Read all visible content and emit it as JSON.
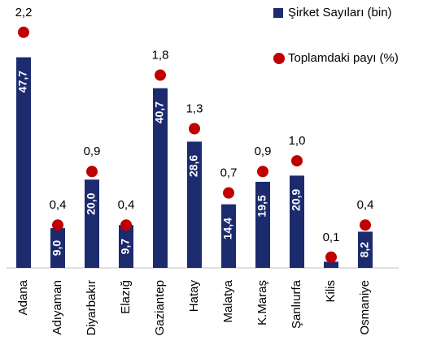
{
  "chart_data": {
    "type": "bar",
    "categories": [
      "Adana",
      "Adıyaman",
      "Diyarbakır",
      "Elazığ",
      "Gaziantep",
      "Hatay",
      "Malatya",
      "K.Maraş",
      "Şanlıurfa",
      "Kilis",
      "Osmaniye"
    ],
    "ylim": [
      0,
      57
    ],
    "y2lim": [
      0,
      2.35
    ],
    "legend": "top-right",
    "series": [
      {
        "name": "Şirket Sayıları (bin)",
        "type": "bar",
        "color": "#1c2a6e",
        "values": [
          47.7,
          9.0,
          20.0,
          9.7,
          40.7,
          28.6,
          14.4,
          19.5,
          20.9,
          1.4,
          8.2
        ],
        "value_labels": [
          "47,7",
          "9,0",
          "20,0",
          "9,7",
          "40,7",
          "28,6",
          "14,4",
          "19,5",
          "20,9",
          null,
          "8,2"
        ]
      },
      {
        "name": "Toplamdaki payı (%)",
        "type": "scatter",
        "axis": "y2",
        "color": "#c00000",
        "values": [
          2.2,
          0.4,
          0.9,
          0.4,
          1.8,
          1.3,
          0.7,
          0.9,
          1.0,
          0.1,
          0.4
        ],
        "value_labels": [
          "2,2",
          "0,4",
          "0,9",
          "0,4",
          "1,8",
          "1,3",
          "0,7",
          "0,9",
          "1,0",
          "0,1",
          "0,4"
        ]
      }
    ]
  }
}
